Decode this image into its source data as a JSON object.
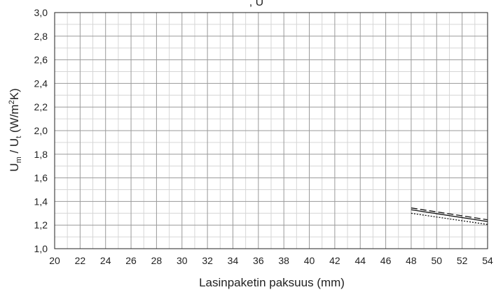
{
  "chart_data": {
    "type": "line",
    "title": ", U",
    "xlabel": "Lasinpaketin paksuus (mm)",
    "ylabel": {
      "base1": "U",
      "sub1": "m",
      "mid": " / U",
      "sub2": "t",
      "unit_pre": " (W/m",
      "sup": "2",
      "unit_post": "K)"
    },
    "xlim": [
      20,
      54
    ],
    "ylim": [
      1.0,
      3.0
    ],
    "x_ticks": [
      "20",
      "22",
      "24",
      "26",
      "28",
      "30",
      "32",
      "34",
      "36",
      "38",
      "40",
      "42",
      "44",
      "46",
      "48",
      "50",
      "52",
      "54"
    ],
    "y_ticks": [
      "1,0",
      "1,2",
      "1,4",
      "1,6",
      "1,8",
      "2,0",
      "2,2",
      "2,4",
      "2,6",
      "2,8",
      "3,0"
    ],
    "grid": true,
    "series": [
      {
        "style": "long-dash",
        "color": "#111111",
        "x": [
          48,
          54
        ],
        "y": [
          1.345,
          1.245
        ]
      },
      {
        "style": "solid",
        "color": "#111111",
        "x": [
          48,
          54
        ],
        "y": [
          1.33,
          1.23
        ]
      },
      {
        "style": "dotted",
        "color": "#111111",
        "x": [
          48,
          54
        ],
        "y": [
          1.3,
          1.205
        ]
      }
    ]
  }
}
